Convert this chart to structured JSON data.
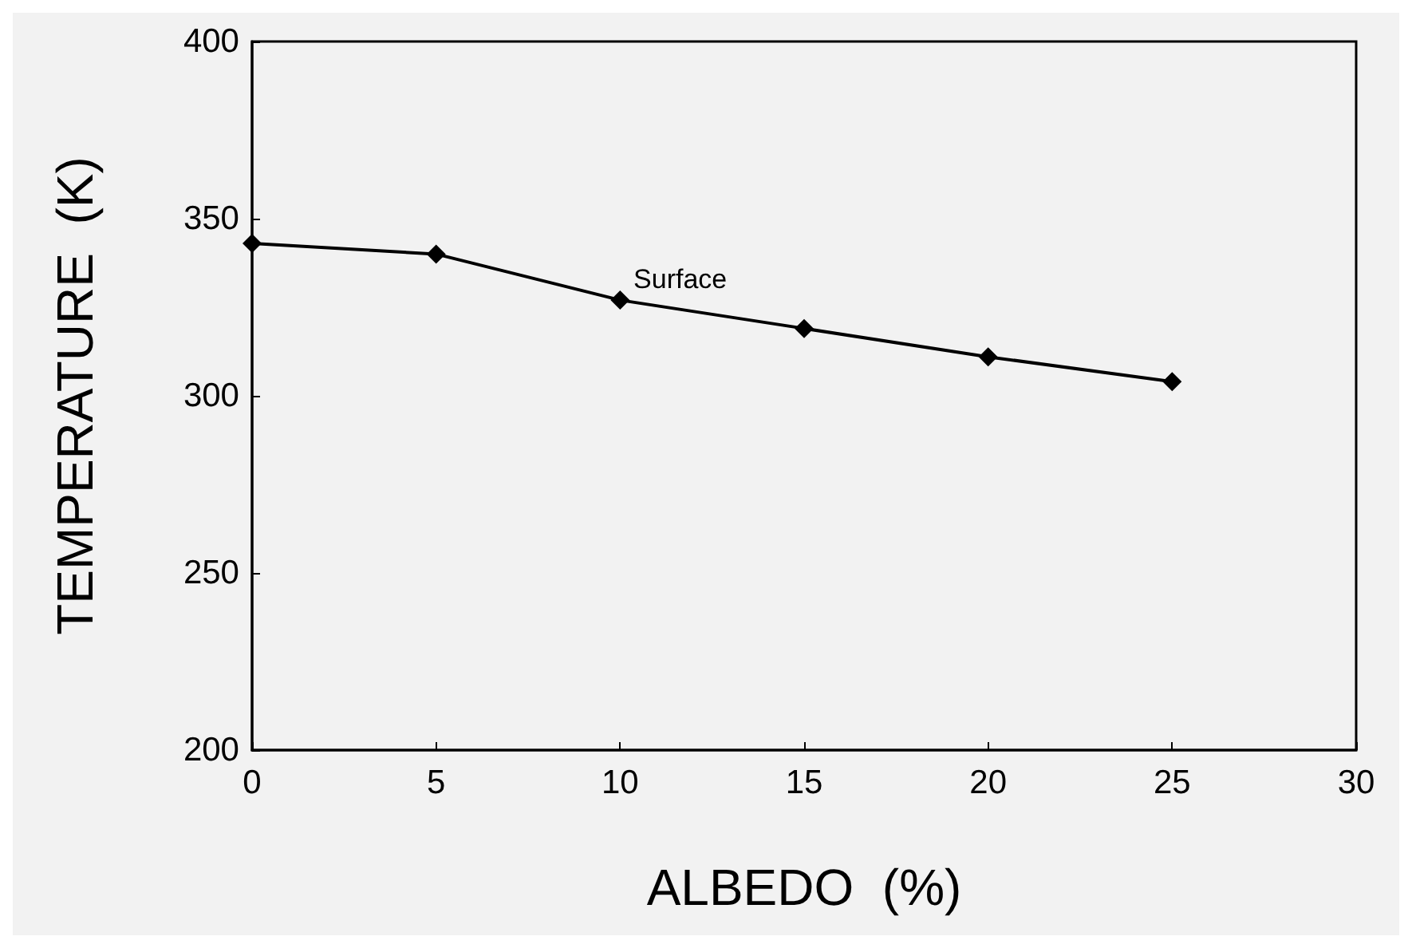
{
  "chart_data": {
    "type": "line",
    "xlabel": "ALBEDO  (%)",
    "ylabel": "TEMPERATURE  (K)",
    "x": [
      0,
      5,
      10,
      15,
      20,
      25
    ],
    "series": [
      {
        "name": "Surface",
        "color": "#000000",
        "values": [
          343,
          340,
          327,
          319,
          311,
          304
        ]
      }
    ],
    "xlim": [
      0,
      30
    ],
    "xticks": [
      0,
      5,
      10,
      15,
      20,
      25,
      30
    ],
    "ylim": [
      200,
      400
    ],
    "yticks": [
      200,
      250,
      300,
      350,
      400
    ],
    "grid": false,
    "marker": "diamond",
    "line_style": "solid"
  }
}
